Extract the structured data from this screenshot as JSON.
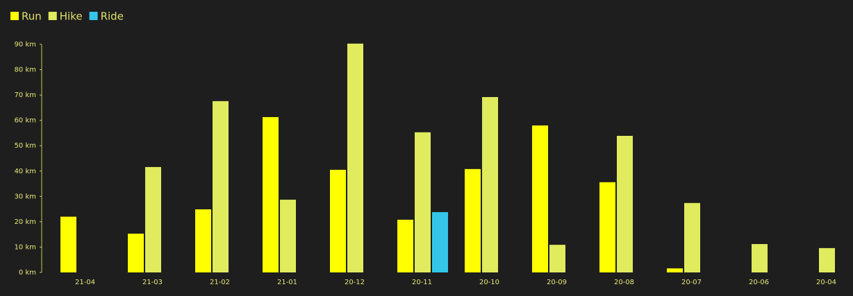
{
  "chart_data": {
    "type": "bar",
    "categories": [
      "21-04",
      "21-03",
      "21-02",
      "21-01",
      "20-12",
      "20-11",
      "20-10",
      "20-09",
      "20-08",
      "20-07",
      "20-06",
      "20-04"
    ],
    "series": [
      {
        "name": "Run",
        "color": "#ffff00",
        "values": [
          22,
          15.3,
          24.9,
          61.3,
          40.5,
          20.8,
          40.8,
          58,
          35.6,
          1.6,
          null,
          null
        ]
      },
      {
        "name": "Hike",
        "color": "#e0eb5e",
        "values": [
          null,
          41.6,
          67.6,
          28.7,
          90.3,
          55.3,
          69.2,
          10.9,
          53.9,
          27.4,
          11.2,
          9.6
        ]
      },
      {
        "name": "Ride",
        "color": "#34c6e8",
        "values": [
          null,
          null,
          null,
          null,
          null,
          23.8,
          null,
          null,
          null,
          null,
          null,
          null
        ]
      }
    ],
    "ylim": [
      0,
      90
    ],
    "yticks": [
      {
        "value": 0,
        "label": "0 km"
      },
      {
        "value": 10,
        "label": "10 km"
      },
      {
        "value": 20,
        "label": "20 km"
      },
      {
        "value": 30,
        "label": "30 km"
      },
      {
        "value": 40,
        "label": "40 km"
      },
      {
        "value": 50,
        "label": "50 km"
      },
      {
        "value": 60,
        "label": "60 km"
      },
      {
        "value": 70,
        "label": "70 km"
      },
      {
        "value": 80,
        "label": "80 km"
      },
      {
        "value": 90,
        "label": "90 km"
      }
    ],
    "legend": "top-left"
  }
}
